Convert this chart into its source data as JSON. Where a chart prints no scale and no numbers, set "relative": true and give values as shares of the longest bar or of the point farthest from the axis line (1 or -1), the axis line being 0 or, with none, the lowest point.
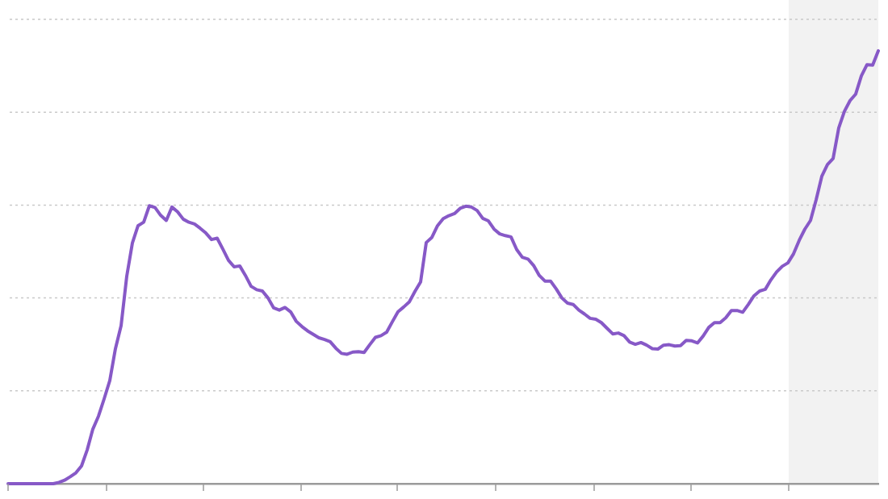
{
  "chart_data": {
    "type": "line",
    "relative": true,
    "grid": "y",
    "categories": [
      null,
      null,
      null,
      null,
      null,
      null,
      null,
      null,
      null,
      null,
      null,
      null,
      null,
      null,
      null,
      null,
      null,
      null,
      null,
      null,
      null,
      null,
      null,
      null,
      null,
      null,
      null,
      null,
      null,
      null,
      null,
      null,
      null,
      null,
      null,
      null,
      null,
      null,
      null,
      null,
      null,
      null,
      null,
      null,
      null,
      null,
      null,
      null,
      null,
      null,
      null,
      null,
      null,
      null,
      null,
      null,
      null,
      null,
      null,
      null,
      null,
      null,
      null,
      null,
      null,
      null,
      null,
      null,
      null,
      null,
      null,
      null,
      null,
      null,
      null,
      null,
      null,
      null,
      null,
      null,
      null,
      null,
      null,
      null,
      null,
      null,
      null,
      null,
      null,
      null,
      null,
      null,
      null,
      null,
      null,
      null,
      null,
      null,
      null,
      null,
      null,
      null,
      null,
      null,
      null,
      null,
      null,
      null,
      null,
      null,
      null,
      null,
      null,
      null,
      null,
      null,
      null,
      null,
      null,
      null,
      null,
      null,
      null,
      null,
      null,
      null,
      null,
      null,
      null,
      null,
      null,
      null,
      null,
      null,
      null,
      null,
      null,
      null,
      null,
      null,
      null,
      null,
      null,
      null,
      null,
      null,
      null,
      null,
      null,
      null,
      null,
      null,
      null,
      null,
      null
    ],
    "series": [
      {
        "color": "#8759c7",
        "values": [
          0,
          0,
          0,
          0,
          0,
          0,
          0,
          0,
          0,
          0.003,
          0.008,
          0.016,
          0.025,
          0.041,
          0.078,
          0.126,
          0.156,
          0.196,
          0.238,
          0.312,
          0.365,
          0.479,
          0.556,
          0.596,
          0.604,
          0.642,
          0.638,
          0.62,
          0.608,
          0.639,
          0.628,
          0.611,
          0.604,
          0.6,
          0.59,
          0.579,
          0.564,
          0.567,
          0.542,
          0.516,
          0.501,
          0.503,
          0.481,
          0.456,
          0.448,
          0.445,
          0.429,
          0.406,
          0.401,
          0.407,
          0.397,
          0.375,
          0.363,
          0.353,
          0.345,
          0.337,
          0.333,
          0.328,
          0.313,
          0.301,
          0.299,
          0.304,
          0.305,
          0.303,
          0.321,
          0.338,
          0.342,
          0.35,
          0.374,
          0.397,
          0.408,
          0.42,
          0.444,
          0.466,
          0.557,
          0.569,
          0.596,
          0.612,
          0.619,
          0.624,
          0.636,
          0.641,
          0.639,
          0.631,
          0.613,
          0.607,
          0.588,
          0.577,
          0.573,
          0.57,
          0.541,
          0.523,
          0.519,
          0.504,
          0.481,
          0.468,
          0.468,
          0.45,
          0.429,
          0.417,
          0.414,
          0.401,
          0.392,
          0.382,
          0.38,
          0.372,
          0.359,
          0.346,
          0.348,
          0.342,
          0.327,
          0.322,
          0.326,
          0.32,
          0.312,
          0.311,
          0.32,
          0.321,
          0.318,
          0.319,
          0.331,
          0.33,
          0.325,
          0.341,
          0.361,
          0.372,
          0.372,
          0.383,
          0.4,
          0.4,
          0.396,
          0.414,
          0.434,
          0.445,
          0.449,
          0.471,
          0.489,
          0.502,
          0.51,
          0.531,
          0.562,
          0.588,
          0.608,
          0.656,
          0.71,
          0.737,
          0.751,
          0.822,
          0.86,
          0.885,
          0.9,
          0.942,
          0.968,
          0.967,
          1
        ]
      }
    ]
  }
}
